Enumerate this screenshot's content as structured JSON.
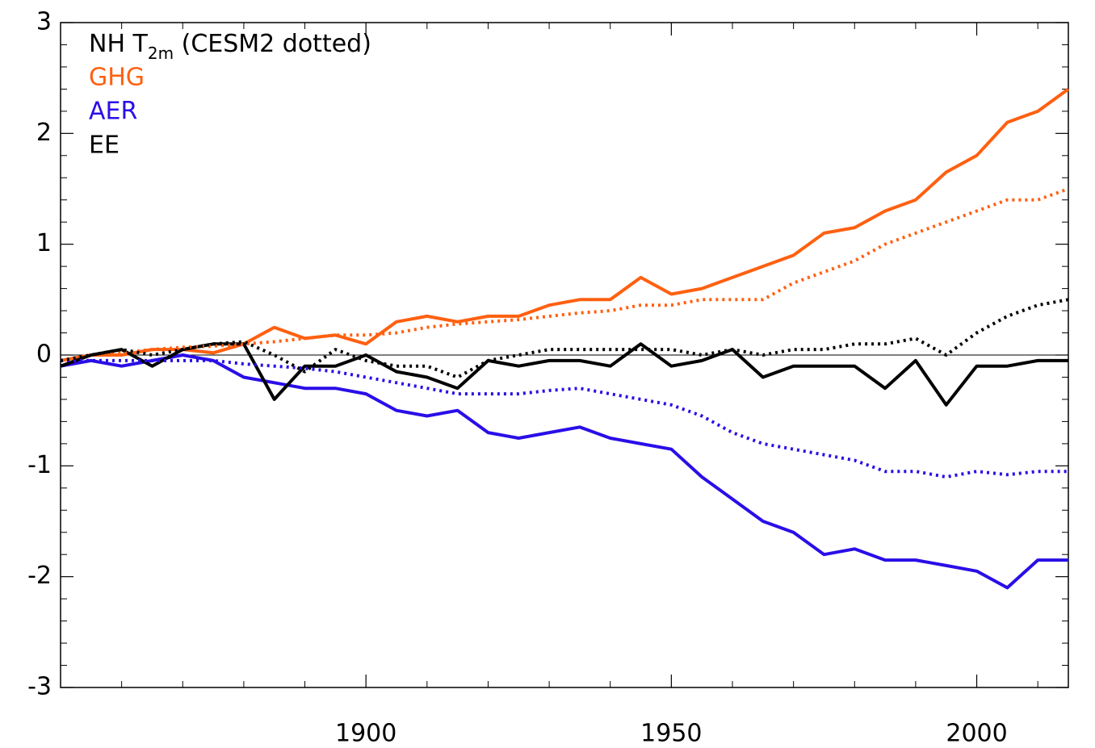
{
  "chart_data": {
    "type": "line",
    "legend_title": [
      "NH T",
      "2m",
      " (CESM2 dotted)"
    ],
    "x": [
      1850,
      1855,
      1860,
      1865,
      1870,
      1875,
      1880,
      1885,
      1890,
      1895,
      1900,
      1905,
      1910,
      1915,
      1920,
      1925,
      1930,
      1935,
      1940,
      1945,
      1950,
      1955,
      1960,
      1965,
      1970,
      1975,
      1980,
      1985,
      1990,
      1995,
      2000,
      2005,
      2010,
      2015
    ],
    "series": [
      {
        "name": "GHG",
        "color": "#ff6010",
        "style": "solid",
        "values": [
          -0.05,
          0.0,
          0.0,
          0.05,
          0.05,
          0.02,
          0.1,
          0.25,
          0.15,
          0.18,
          0.1,
          0.3,
          0.35,
          0.3,
          0.35,
          0.35,
          0.45,
          0.5,
          0.5,
          0.7,
          0.55,
          0.6,
          0.7,
          0.8,
          0.9,
          1.1,
          1.15,
          1.3,
          1.4,
          1.65,
          1.8,
          2.1,
          2.2,
          2.4
        ]
      },
      {
        "name": "AER",
        "color": "#2a0ee8",
        "style": "solid",
        "values": [
          -0.1,
          -0.05,
          -0.1,
          -0.05,
          0.0,
          -0.05,
          -0.2,
          -0.25,
          -0.3,
          -0.3,
          -0.35,
          -0.5,
          -0.55,
          -0.5,
          -0.7,
          -0.75,
          -0.7,
          -0.65,
          -0.75,
          -0.8,
          -0.85,
          -1.1,
          -1.3,
          -1.5,
          -1.6,
          -1.8,
          -1.75,
          -1.85,
          -1.85,
          -1.9,
          -1.95,
          -2.1,
          -1.85,
          -1.85
        ]
      },
      {
        "name": "EE",
        "color": "#000000",
        "style": "solid",
        "values": [
          -0.1,
          0.0,
          0.05,
          -0.1,
          0.05,
          0.1,
          0.1,
          -0.4,
          -0.1,
          -0.1,
          0.0,
          -0.15,
          -0.2,
          -0.3,
          -0.05,
          -0.1,
          -0.05,
          -0.05,
          -0.1,
          0.1,
          -0.1,
          -0.05,
          0.05,
          -0.2,
          -0.1,
          -0.1,
          -0.1,
          -0.3,
          -0.05,
          -0.45,
          -0.1,
          -0.1,
          -0.05,
          -0.05
        ]
      },
      {
        "color": "#ff6010",
        "style": "dotted",
        "values": [
          -0.05,
          0.0,
          0.02,
          0.05,
          0.07,
          0.08,
          0.1,
          0.12,
          0.15,
          0.18,
          0.18,
          0.2,
          0.25,
          0.28,
          0.3,
          0.32,
          0.35,
          0.38,
          0.4,
          0.45,
          0.45,
          0.5,
          0.5,
          0.5,
          0.65,
          0.75,
          0.85,
          1.0,
          1.1,
          1.2,
          1.3,
          1.4,
          1.4,
          1.5
        ]
      },
      {
        "color": "#2a0ee8",
        "style": "dotted",
        "values": [
          -0.05,
          -0.05,
          -0.05,
          -0.05,
          -0.05,
          -0.05,
          -0.08,
          -0.1,
          -0.12,
          -0.15,
          -0.2,
          -0.25,
          -0.3,
          -0.35,
          -0.35,
          -0.35,
          -0.32,
          -0.3,
          -0.35,
          -0.4,
          -0.45,
          -0.55,
          -0.7,
          -0.8,
          -0.85,
          -0.9,
          -0.95,
          -1.05,
          -1.05,
          -1.1,
          -1.05,
          -1.08,
          -1.05,
          -1.05
        ]
      },
      {
        "color": "#000000",
        "style": "dotted",
        "values": [
          -0.05,
          0.0,
          0.05,
          0.0,
          0.05,
          0.1,
          0.12,
          0.0,
          -0.15,
          0.05,
          -0.05,
          -0.1,
          -0.1,
          -0.2,
          -0.05,
          0.0,
          0.05,
          0.05,
          0.05,
          0.05,
          0.05,
          0.0,
          0.05,
          0.0,
          0.05,
          0.05,
          0.1,
          0.1,
          0.15,
          0.0,
          0.2,
          0.35,
          0.45,
          0.5
        ]
      }
    ],
    "xlim": [
      1850,
      2015
    ],
    "xticks": [
      1900,
      1950,
      2000
    ],
    "xminor_ticks": [
      1860,
      1870,
      1880,
      1890,
      1910,
      1920,
      1930,
      1940,
      1960,
      1970,
      1980,
      1990,
      2010
    ],
    "ylim": [
      -3,
      3
    ],
    "yticks": [
      -3,
      -2,
      -1,
      0,
      1,
      2,
      3
    ],
    "yminor_ticks": [
      -2.8,
      -2.6,
      -2.4,
      -2.2,
      -1.8,
      -1.6,
      -1.4,
      -1.2,
      -0.8,
      -0.6,
      -0.4,
      -0.2,
      0.2,
      0.4,
      0.6,
      0.8,
      1.2,
      1.4,
      1.6,
      1.8,
      2.2,
      2.4,
      2.6,
      2.8
    ],
    "zero_line": 0
  }
}
